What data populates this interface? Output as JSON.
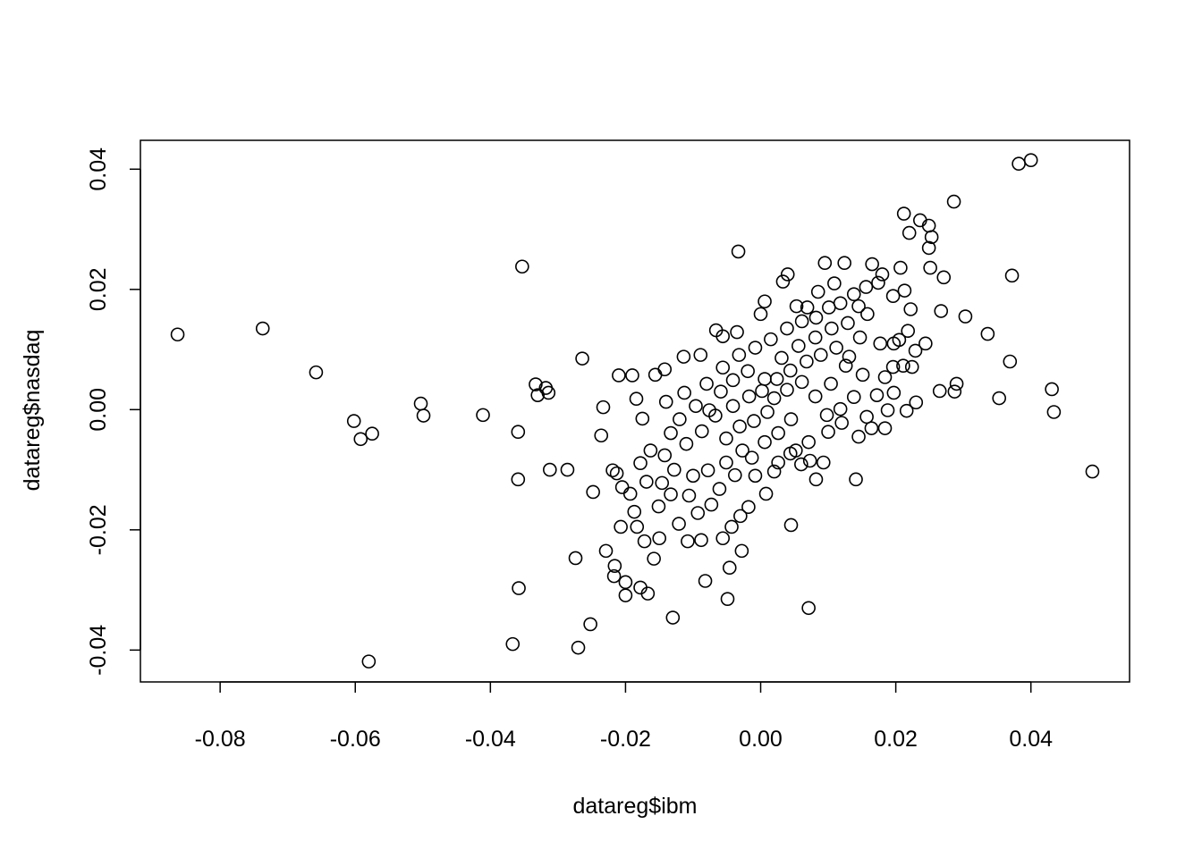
{
  "chart_data": {
    "type": "scatter",
    "title": "",
    "xlabel": "datareg$ibm",
    "ylabel": "datareg$nasdaq",
    "xlim": [
      -0.0918,
      0.0546
    ],
    "ylim": [
      -0.0453,
      0.0448
    ],
    "xticks": [
      -0.08,
      -0.06,
      -0.04,
      -0.02,
      0.0,
      0.02,
      0.04
    ],
    "xtick_labels": [
      "-0.08",
      "-0.06",
      "-0.04",
      "-0.02",
      "0.00",
      "0.02",
      "0.04"
    ],
    "yticks": [
      -0.04,
      -0.02,
      0.0,
      0.02,
      0.04
    ],
    "ytick_labels": [
      "-0.04",
      "-0.02",
      "0.00",
      "0.02",
      "0.04"
    ],
    "grid": false,
    "marker": "open-circle",
    "marker_color": "#000000",
    "points": [
      [
        -0.0863,
        0.0125
      ],
      [
        -0.0737,
        0.0135
      ],
      [
        -0.0658,
        0.0062
      ],
      [
        -0.0602,
        -0.0019
      ],
      [
        -0.0592,
        -0.0049
      ],
      [
        -0.0575,
        -0.004
      ],
      [
        -0.058,
        -0.0419
      ],
      [
        -0.0503,
        0.001
      ],
      [
        -0.0499,
        -0.001
      ],
      [
        -0.0411,
        -0.0009
      ],
      [
        -0.0353,
        0.0238
      ],
      [
        -0.0359,
        -0.0037
      ],
      [
        -0.0359,
        -0.0116
      ],
      [
        -0.0358,
        -0.0297
      ],
      [
        -0.0367,
        -0.039
      ],
      [
        -0.0333,
        0.0042
      ],
      [
        -0.033,
        0.0024
      ],
      [
        -0.0318,
        0.0036
      ],
      [
        -0.0314,
        0.0028
      ],
      [
        -0.0312,
        -0.01
      ],
      [
        -0.0286,
        -0.01
      ],
      [
        -0.0274,
        -0.0247
      ],
      [
        -0.027,
        -0.0396
      ],
      [
        -0.0264,
        0.0085
      ],
      [
        -0.0252,
        -0.0357
      ],
      [
        -0.0248,
        -0.0137
      ],
      [
        -0.0233,
        0.0004
      ],
      [
        -0.0236,
        -0.0043
      ],
      [
        -0.0229,
        -0.0235
      ],
      [
        -0.0033,
        0.0263
      ],
      [
        0.004,
        0.0225
      ],
      [
        0.0212,
        0.0326
      ],
      [
        0.0286,
        0.0346
      ],
      [
        0.0382,
        0.0409
      ],
      [
        0.04,
        0.0415
      ],
      [
        0.0249,
        0.0269
      ],
      [
        0.0372,
        0.0223
      ],
      [
        0.0336,
        0.0126
      ],
      [
        0.0303,
        0.0155
      ],
      [
        0.0353,
        0.0019
      ],
      [
        0.0369,
        0.008
      ],
      [
        0.0431,
        0.0034
      ],
      [
        0.0434,
        -0.0004
      ],
      [
        0.0491,
        -0.0103
      ],
      [
        0.0287,
        0.003
      ],
      [
        0.029,
        0.0043
      ],
      [
        0.0265,
        0.0031
      ],
      [
        0.0267,
        0.0164
      ],
      [
        0.0045,
        -0.0192
      ],
      [
        0.0071,
        -0.033
      ],
      [
        -0.013,
        -0.0346
      ],
      [
        -0.0049,
        -0.0315
      ],
      [
        0.0141,
        -0.0116
      ],
      [
        0.0145,
        -0.0045
      ],
      [
        -0.0167,
        -0.0306
      ],
      [
        -0.02,
        -0.0309
      ],
      [
        -0.0207,
        -0.0195
      ],
      [
        -0.0046,
        -0.0263
      ],
      [
        -0.0028,
        -0.0235
      ],
      [
        -0.0082,
        -0.0285
      ],
      [
        0.0008,
        -0.014
      ],
      [
        0.0082,
        -0.0116
      ],
      [
        0.0093,
        -0.0088
      ],
      [
        0.022,
        0.0294
      ],
      [
        0.0236,
        0.0315
      ],
      [
        0.0249,
        0.0306
      ],
      [
        0.0253,
        0.0287
      ],
      [
        0.0095,
        0.0244
      ],
      [
        0.0124,
        0.0244
      ],
      [
        0.0165,
        0.0242
      ],
      [
        0.0207,
        0.0236
      ],
      [
        0.0251,
        0.0236
      ],
      [
        0.0271,
        0.022
      ],
      [
        0.0244,
        0.011
      ],
      [
        0.0229,
        0.0098
      ],
      [
        0.0216,
        -0.0002
      ],
      [
        0.0224,
        0.0071
      ],
      [
        0.023,
        0.0012
      ],
      [
        0.0188,
        -0.0001
      ],
      [
        -0.021,
        0.0057
      ],
      [
        -0.019,
        0.0057
      ],
      [
        -0.0184,
        0.0018
      ],
      [
        -0.0175,
        -0.0015
      ],
      [
        -0.0219,
        -0.0101
      ],
      [
        -0.0213,
        -0.0106
      ],
      [
        -0.0205,
        -0.0129
      ],
      [
        -0.0187,
        -0.017
      ],
      [
        -0.0183,
        -0.0195
      ],
      [
        -0.0172,
        -0.0219
      ],
      [
        -0.0158,
        -0.0248
      ],
      [
        -0.015,
        -0.0214
      ],
      [
        -0.0178,
        -0.0296
      ],
      [
        -0.0216,
        -0.026
      ],
      [
        -0.02,
        -0.0287
      ],
      [
        -0.0217,
        -0.0277
      ],
      [
        -0.0121,
        -0.019
      ],
      [
        -0.0108,
        -0.0219
      ],
      [
        -0.0088,
        -0.0217
      ],
      [
        -0.0056,
        -0.0214
      ],
      [
        -0.0043,
        -0.0195
      ],
      [
        -0.003,
        -0.0177
      ],
      [
        -0.0018,
        -0.0162
      ],
      [
        -0.0093,
        -0.0172
      ],
      [
        -0.0133,
        -0.0141
      ],
      [
        -0.0151,
        -0.0161
      ],
      [
        -0.0146,
        -0.0122
      ],
      [
        -0.0142,
        -0.0076
      ],
      [
        -0.0156,
        0.0058
      ],
      [
        -0.0142,
        0.0067
      ],
      [
        -0.0114,
        0.0088
      ],
      [
        -0.0089,
        0.0091
      ],
      [
        -0.0066,
        0.0132
      ],
      [
        -0.0056,
        0.0122
      ],
      [
        -0.0035,
        0.0129
      ],
      [
        0.0,
        0.0159
      ],
      [
        0.0006,
        0.018
      ],
      [
        0.0033,
        0.0213
      ],
      [
        0.0053,
        0.0172
      ],
      [
        0.0069,
        0.017
      ],
      [
        0.0085,
        0.0196
      ],
      [
        0.0109,
        0.021
      ],
      [
        0.0138,
        0.0192
      ],
      [
        0.0156,
        0.0204
      ],
      [
        0.0174,
        0.0211
      ],
      [
        0.018,
        0.0225
      ],
      [
        0.0196,
        0.0189
      ],
      [
        0.0213,
        0.0198
      ],
      [
        0.0222,
        0.0167
      ],
      [
        0.0218,
        0.0131
      ],
      [
        0.0205,
        0.0116
      ],
      [
        0.0196,
        0.0071
      ],
      [
        0.0177,
        0.011
      ],
      [
        0.0184,
        0.0054
      ],
      [
        0.0172,
        0.0024
      ],
      [
        0.0157,
        -0.0012
      ],
      [
        0.012,
        -0.0022
      ],
      [
        0.01,
        -0.0037
      ],
      [
        0.0071,
        -0.0054
      ],
      [
        0.006,
        -0.0091
      ],
      [
        0.0052,
        -0.0068
      ],
      [
        0.0026,
        -0.0088
      ],
      [
        -0.0013,
        -0.008
      ],
      [
        -0.0038,
        -0.0109
      ],
      [
        -0.0061,
        -0.0132
      ],
      [
        -0.0078,
        -0.0101
      ],
      [
        -0.01,
        -0.011
      ],
      [
        -0.011,
        -0.0057
      ],
      [
        -0.0087,
        -0.0036
      ],
      [
        -0.0076,
        -0.0001
      ],
      [
        -0.0059,
        0.003
      ],
      [
        -0.0041,
        0.0049
      ],
      [
        -0.0019,
        0.0064
      ],
      [
        0.0006,
        0.0051
      ],
      [
        0.0031,
        0.0086
      ],
      [
        0.0056,
        0.0106
      ],
      [
        0.0081,
        0.012
      ],
      [
        0.0105,
        0.0135
      ],
      [
        0.0129,
        0.0144
      ],
      [
        0.0147,
        0.012
      ],
      [
        0.0126,
        0.0073
      ],
      [
        0.0104,
        0.0043
      ],
      [
        0.0081,
        0.0022
      ],
      [
        0.0061,
        0.0046
      ],
      [
        0.0039,
        0.0033
      ],
      [
        0.002,
        0.0019
      ],
      [
        0.001,
        -0.0004
      ],
      [
        -0.001,
        -0.0019
      ],
      [
        -0.0031,
        -0.0028
      ],
      [
        -0.0051,
        -0.0048
      ],
      [
        -0.0067,
        -0.001
      ],
      [
        -0.0041,
        0.0006
      ],
      [
        -0.0017,
        0.0022
      ],
      [
        0.0002,
        0.0031
      ],
      [
        0.0024,
        0.0051
      ],
      [
        0.0044,
        0.0065
      ],
      [
        0.0068,
        0.008
      ],
      [
        0.0089,
        0.0091
      ],
      [
        0.0112,
        0.0103
      ],
      [
        0.0131,
        0.0088
      ],
      [
        0.0151,
        0.0058
      ],
      [
        0.0138,
        0.0021
      ],
      [
        0.0118,
        0.0001
      ],
      [
        0.0098,
        -0.0009
      ],
      [
        0.0045,
        -0.0016
      ],
      [
        0.0026,
        -0.0039
      ],
      [
        0.0006,
        -0.0054
      ],
      [
        -0.0027,
        -0.0068
      ],
      [
        -0.012,
        -0.0016
      ],
      [
        -0.0133,
        -0.0039
      ],
      [
        -0.014,
        0.0013
      ],
      [
        -0.0113,
        0.0028
      ],
      [
        -0.0096,
        0.0006
      ],
      [
        -0.008,
        0.0043
      ],
      [
        -0.0056,
        0.007
      ],
      [
        -0.0032,
        0.0091
      ],
      [
        -0.0008,
        0.0103
      ],
      [
        0.0015,
        0.0117
      ],
      [
        0.0039,
        0.0135
      ],
      [
        0.0061,
        0.0147
      ],
      [
        0.0082,
        0.0153
      ],
      [
        0.0101,
        0.017
      ],
      [
        0.0118,
        0.0177
      ],
      [
        -0.0178,
        -0.0089
      ],
      [
        -0.0169,
        -0.012
      ],
      [
        -0.0163,
        -0.0068
      ],
      [
        -0.0193,
        -0.014
      ],
      [
        -0.0128,
        -0.01
      ],
      [
        -0.0106,
        -0.0143
      ],
      [
        -0.0073,
        -0.0158
      ],
      [
        -0.0051,
        -0.0088
      ],
      [
        -0.0008,
        -0.011
      ],
      [
        0.002,
        -0.0103
      ],
      [
        0.0044,
        -0.0073
      ],
      [
        0.0073,
        -0.0085
      ],
      [
        0.0164,
        -0.0031
      ],
      [
        0.0184,
        -0.0031
      ],
      [
        0.0197,
        0.0028
      ],
      [
        0.0211,
        0.0073
      ],
      [
        0.0197,
        0.011
      ],
      [
        0.0158,
        0.0159
      ],
      [
        0.0145,
        0.0172
      ]
    ]
  }
}
